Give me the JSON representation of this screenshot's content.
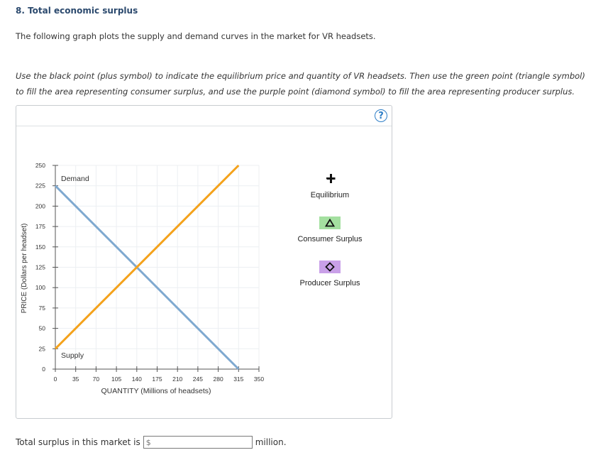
{
  "question": {
    "title": "8. Total economic surplus",
    "intro": "The following graph plots the supply and demand curves in the market for VR headsets.",
    "instructions": "Use the black point (plus symbol) to indicate the equilibrium price and quantity of VR headsets. Then use the green point (triangle symbol) to fill the area representing consumer surplus, and use the purple point (diamond symbol) to fill the area representing producer surplus."
  },
  "help_label": "?",
  "legend": {
    "equilibrium": "Equilibrium",
    "consumer_surplus": "Consumer Surplus",
    "producer_surplus": "Producer Surplus"
  },
  "chart_data": {
    "type": "line",
    "xlabel": "QUANTITY (Millions of headsets)",
    "ylabel": "PRICE (Dollars per headset)",
    "xlim": [
      0,
      350
    ],
    "ylim": [
      0,
      250
    ],
    "xticks": [
      0,
      35,
      70,
      105,
      140,
      175,
      210,
      245,
      280,
      315,
      350
    ],
    "yticks": [
      0,
      25,
      50,
      75,
      100,
      125,
      150,
      175,
      200,
      225,
      250
    ],
    "grid": true,
    "series": [
      {
        "name": "Demand",
        "color": "#7fa9d0",
        "x": [
          0,
          315
        ],
        "y": [
          225,
          0
        ]
      },
      {
        "name": "Supply",
        "color": "#f4a21b",
        "x": [
          0,
          315
        ],
        "y": [
          25,
          250
        ]
      }
    ]
  },
  "answer": {
    "prefix": "Total surplus in this market is",
    "currency": "$",
    "value": "",
    "suffix": "million."
  },
  "colors": {
    "consumer_surplus_fill": "#a4e0a0",
    "producer_surplus_fill": "#c9a0e8",
    "title_color": "#2c4a6e"
  }
}
